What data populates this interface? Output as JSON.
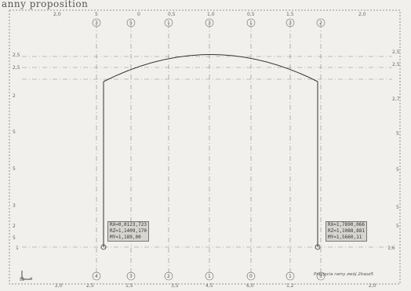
{
  "header": {
    "text": "anny proposition"
  },
  "top_axis_labels": [
    "2,0",
    "5",
    "0",
    "0,5",
    "1,0",
    "0,5",
    "1,5",
    "2,0"
  ],
  "top_bubbles": [
    "3",
    "5",
    "1",
    "3",
    "1",
    "3",
    "2"
  ],
  "bottom_axis_labels": [
    "2,0",
    "2,5",
    "1,5",
    "3,5",
    "4,5",
    "6,0",
    "1,2",
    "2,0"
  ],
  "bottom_bubbles": [
    "4",
    "3",
    "2",
    "1",
    "0",
    "1",
    "5"
  ],
  "left_axis_labels": [
    "2,5",
    "2,5",
    "2",
    "5",
    "5",
    "3",
    "2",
    "5",
    "1"
  ],
  "right_axis_labels": [
    "2,5",
    "2,5",
    "2,7",
    "5",
    "5",
    "5",
    "5",
    "1,6"
  ],
  "left_box": {
    "lines": [
      "RX=0,0123,723",
      "RZ=1,1409,170",
      "MY=1,189,00"
    ]
  },
  "right_box": {
    "lines": [
      "RX=1,7890,066",
      "RZ=1,1088,881",
      "MY=1,5660,11"
    ]
  },
  "footnote": "Przyjęcia ramy zwój 2kaoz5",
  "ucs_label": "x",
  "colors": {
    "background": "#f1f0ec",
    "line": "#333333",
    "grid": "#888888",
    "box_fill": "#d6d5d0"
  }
}
